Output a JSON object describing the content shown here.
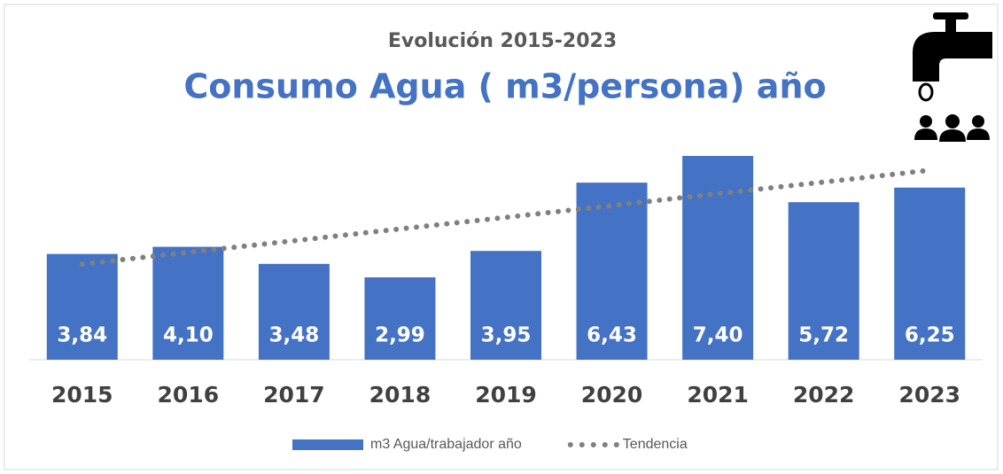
{
  "chart_data": {
    "type": "bar",
    "title": "Evolución 2015-2023",
    "subtitle": "Consumo Agua ( m3/persona) año",
    "categories": [
      "2015",
      "2016",
      "2017",
      "2018",
      "2019",
      "2020",
      "2021",
      "2022",
      "2023"
    ],
    "series": [
      {
        "name": "m3 Agua/trabajador año",
        "color": "#4472c4",
        "values": [
          3.84,
          4.1,
          3.48,
          2.99,
          3.95,
          6.43,
          7.4,
          5.72,
          6.25
        ],
        "value_labels": [
          "3,84",
          "4,10",
          "3,48",
          "2,99",
          "3,95",
          "6,43",
          "7,40",
          "5,72",
          "6,25"
        ]
      },
      {
        "name": "Tendencia",
        "color": "#808080",
        "style": "dotted",
        "values": [
          3.47,
          3.9,
          4.32,
          4.75,
          5.17,
          5.6,
          6.03,
          6.45,
          6.88
        ]
      }
    ],
    "ylim": [
      0,
      7.4
    ],
    "grid": false,
    "legend": "bottom"
  }
}
